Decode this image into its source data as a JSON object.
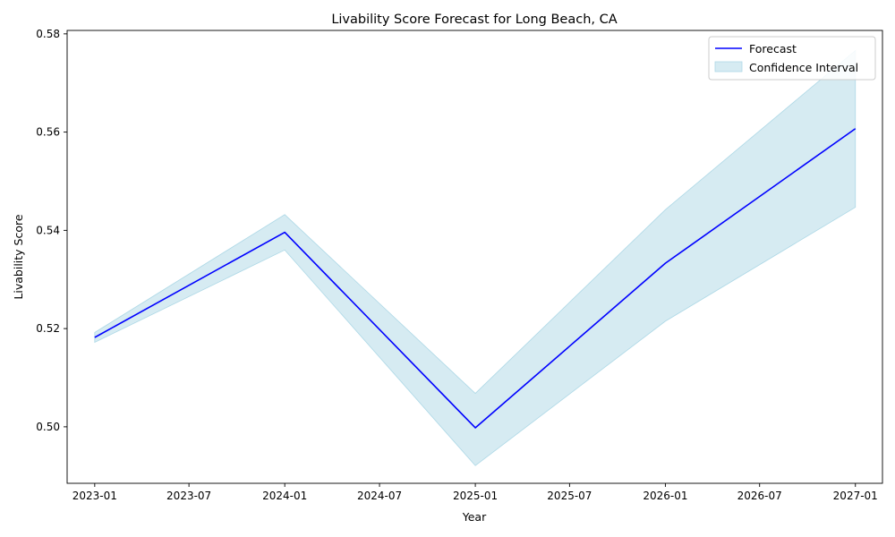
{
  "chart_data": {
    "type": "line",
    "title": "Livability Score Forecast for Long Beach, CA",
    "xlabel": "Year",
    "ylabel": "Livability Score",
    "x": [
      "2023-01-01",
      "2024-01-01",
      "2025-01-01",
      "2026-01-01",
      "2027-01-01"
    ],
    "series": [
      {
        "name": "Forecast",
        "kind": "line",
        "color": "#0000ff",
        "values": [
          0.5182,
          0.5396,
          0.4998,
          0.5333,
          0.5607
        ]
      },
      {
        "name": "Confidence Interval",
        "kind": "band",
        "color": "#add8e6",
        "lower": [
          0.5172,
          0.536,
          0.4921,
          0.5215,
          0.5447
        ],
        "upper": [
          0.5192,
          0.5432,
          0.5068,
          0.5442,
          0.5766
        ]
      }
    ],
    "xticks": [
      "2023-01",
      "2023-07",
      "2024-01",
      "2024-07",
      "2025-01",
      "2025-07",
      "2026-01",
      "2026-07",
      "2027-01"
    ],
    "yticks": [
      "0.50",
      "0.52",
      "0.54",
      "0.56",
      "0.58"
    ],
    "ylim": [
      0.4885,
      0.5807
    ],
    "xlim": [
      "2022-11-09",
      "2027-02-22"
    ],
    "grid": false,
    "legend": "top-right"
  }
}
